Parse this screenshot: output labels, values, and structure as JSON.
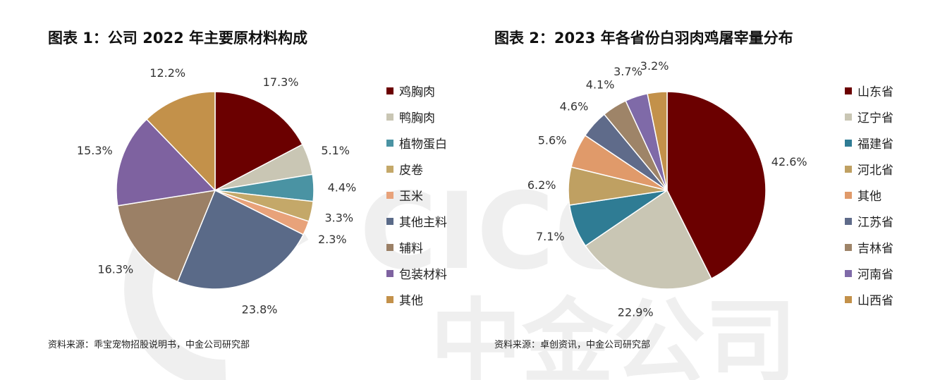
{
  "chart_data": [
    {
      "type": "pie",
      "title": "图表 1：公司 2022 年主要原材料构成",
      "categories": [
        "鸡胸肉",
        "鸭胸肉",
        "植物蛋白",
        "皮卷",
        "玉米",
        "其他主料",
        "辅料",
        "包装材料",
        "其他"
      ],
      "values": [
        17.3,
        5.1,
        4.4,
        3.3,
        2.3,
        23.8,
        16.3,
        15.3,
        12.2
      ],
      "value_labels": [
        "17.3%",
        "5.1%",
        "4.4%",
        "3.3%",
        "2.3%",
        "23.8%",
        "16.3%",
        "15.3%",
        "12.2%"
      ],
      "colors": [
        "#6B0000",
        "#C9C6B4",
        "#4A93A3",
        "#C4A869",
        "#E8A27A",
        "#5A6A88",
        "#9B8066",
        "#7E62A0",
        "#C3914A"
      ],
      "legend_position": "right",
      "source": "资料来源：乖宝宠物招股说明书，中金公司研究部"
    },
    {
      "type": "pie",
      "title": "图表 2：2023 年各省份白羽肉鸡屠宰量分布",
      "categories": [
        "山东省",
        "辽宁省",
        "福建省",
        "河北省",
        "其他",
        "江苏省",
        "吉林省",
        "河南省",
        "山西省"
      ],
      "values": [
        42.6,
        22.9,
        7.1,
        6.2,
        5.6,
        4.6,
        4.1,
        3.7,
        3.2
      ],
      "value_labels": [
        "42.6%",
        "22.9%",
        "7.1%",
        "6.2%",
        "5.6%",
        "4.6%",
        "4.1%",
        "3.7%",
        "3.2%"
      ],
      "colors": [
        "#6B0000",
        "#C9C6B4",
        "#2F7C94",
        "#BFA062",
        "#E09A6A",
        "#5F6B8A",
        "#9E8468",
        "#7F6AA8",
        "#C3914A"
      ],
      "legend_position": "right",
      "source": "资料来源：卓创资讯，中金公司研究部"
    }
  ],
  "watermark": {
    "latin": "CICC",
    "chinese": "中金公司",
    "color": "#B8B8B8"
  }
}
